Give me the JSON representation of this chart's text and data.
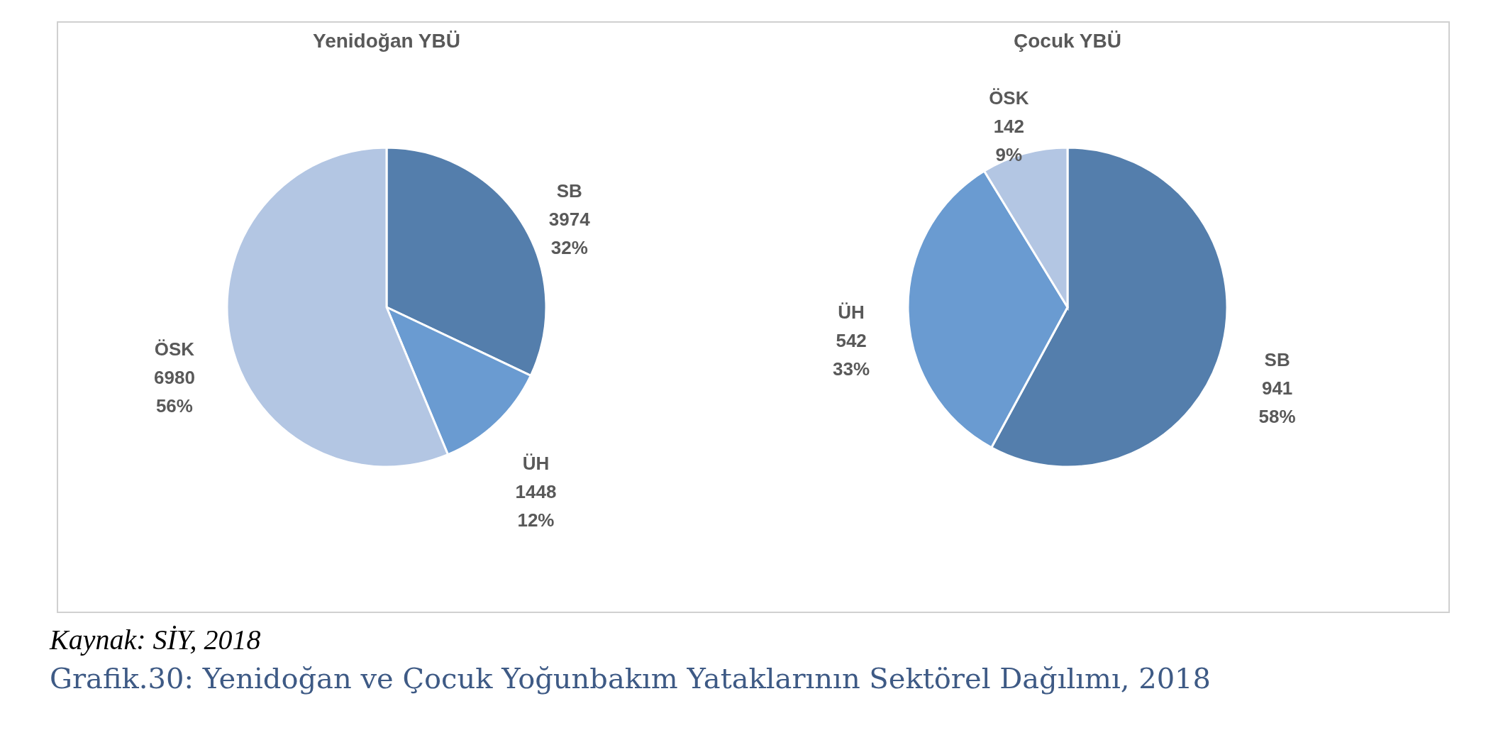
{
  "chart_data": [
    {
      "type": "pie",
      "title": "Yenidoğan YBÜ",
      "categories": [
        "SB",
        "ÜH",
        "ÖSK"
      ],
      "values": [
        3974,
        1448,
        6980
      ],
      "colors": [
        "#547eac",
        "#6a9bd1",
        "#b3c6e3"
      ],
      "value_labels": [
        "3974\n32%",
        "1448\n12%",
        "6980\n56%"
      ],
      "legend": false
    },
    {
      "type": "pie",
      "title": "Çocuk YBÜ",
      "categories": [
        "SB",
        "ÜH",
        "ÖSK"
      ],
      "values": [
        941,
        542,
        142
      ],
      "colors": [
        "#547eac",
        "#6a9bd1",
        "#b3c6e3"
      ],
      "value_labels": [
        "941\n58%",
        "542\n33%",
        "142\n9%"
      ],
      "legend": false,
      "annotations": [
        "Kaynak: SİY, 2018",
        "Grafik.30: Yenidoğan ve Çocuk Yoğunbakım Yataklarının Sektörel Dağılımı, 2018"
      ]
    }
  ]
}
